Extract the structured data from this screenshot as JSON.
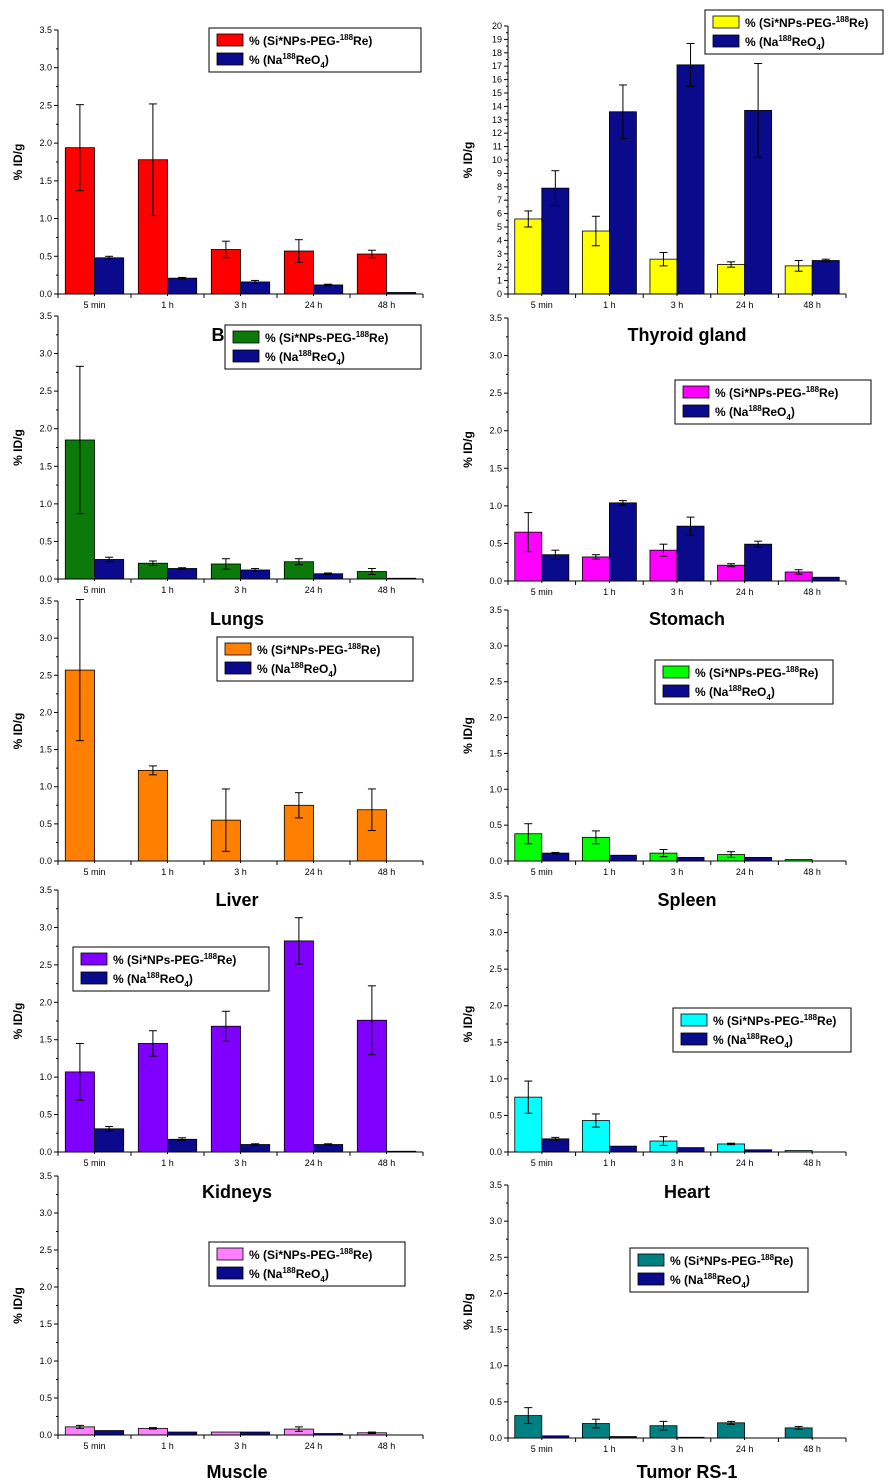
{
  "colors": {
    "series2": "#0a0a8c",
    "axis": "#000000"
  },
  "chart_data": [
    {
      "type": "bar",
      "title": "Blood",
      "ylabel": "% ID/g",
      "categories": [
        "5 min",
        "1 h",
        "3 h",
        "24 h",
        "48 h"
      ],
      "ylim": [
        0,
        3.5
      ],
      "ticks": [
        "0.0",
        "0.5",
        "1.0",
        "1.5",
        "2.0",
        "2.5",
        "3.0",
        "3.5"
      ],
      "legend_position": "top-right",
      "series": [
        {
          "legend_prefix": "% (Si*NPs-PEG-",
          "legend_sup": "188",
          "legend_suffix": "Re)",
          "color": "#ff0000",
          "values": [
            1.94,
            1.78,
            0.59,
            0.57,
            0.53
          ],
          "errors": [
            0.57,
            0.74,
            0.11,
            0.15,
            0.05
          ]
        },
        {
          "legend_prefix": "% (Na",
          "legend_sup": "188",
          "legend_suffix": "ReO",
          "legend_sub": "4",
          "legend_end": ")",
          "color": "#0a0a8c",
          "values": [
            0.48,
            0.21,
            0.16,
            0.12,
            0.02
          ],
          "errors": [
            0.02,
            0.01,
            0.02,
            0.01,
            0.0
          ]
        }
      ]
    },
    {
      "type": "bar",
      "title": "Thyroid gland",
      "ylabel": "% ID/g",
      "categories": [
        "5 min",
        "1 h",
        "3 h",
        "24 h",
        "48 h"
      ],
      "ylim": [
        0,
        20
      ],
      "ticks": [
        "0",
        "1",
        "2",
        "3",
        "4",
        "5",
        "6",
        "7",
        "8",
        "9",
        "10",
        "11",
        "12",
        "13",
        "14",
        "15",
        "16",
        "17",
        "18",
        "19",
        "20"
      ],
      "legend_position": "top-right",
      "series": [
        {
          "legend_prefix": "% (Si*NPs-PEG-",
          "legend_sup": "188",
          "legend_suffix": "Re)",
          "color": "#ffff00",
          "values": [
            5.6,
            4.7,
            2.6,
            2.2,
            2.1
          ],
          "errors": [
            0.6,
            1.1,
            0.5,
            0.2,
            0.4
          ]
        },
        {
          "legend_prefix": "% (Na",
          "legend_sup": "188",
          "legend_suffix": "ReO",
          "legend_sub": "4",
          "legend_end": ")",
          "color": "#0a0a8c",
          "values": [
            7.9,
            13.6,
            17.1,
            13.7,
            2.5
          ],
          "errors": [
            1.3,
            2.0,
            1.6,
            3.5,
            0.1
          ]
        }
      ]
    },
    {
      "type": "bar",
      "title": "Lungs",
      "ylabel": "% ID/g",
      "categories": [
        "5 min",
        "1 h",
        "3 h",
        "24 h",
        "48 h"
      ],
      "ylim": [
        0,
        3.5
      ],
      "ticks": [
        "0.0",
        "0.5",
        "1.0",
        "1.5",
        "2.0",
        "2.5",
        "3.0",
        "3.5"
      ],
      "legend_position": "top-right",
      "series": [
        {
          "legend_prefix": "% (Si*NPs-PEG-",
          "legend_sup": "188",
          "legend_suffix": "Re)",
          "color": "#0b7a0b",
          "values": [
            1.85,
            0.21,
            0.2,
            0.23,
            0.1
          ],
          "errors": [
            0.98,
            0.03,
            0.07,
            0.04,
            0.04
          ]
        },
        {
          "legend_prefix": "% (Na",
          "legend_sup": "188",
          "legend_suffix": "ReO",
          "legend_sub": "4",
          "legend_end": ")",
          "color": "#0a0a8c",
          "values": [
            0.26,
            0.14,
            0.12,
            0.07,
            0.01
          ],
          "errors": [
            0.03,
            0.01,
            0.02,
            0.01,
            0.0
          ]
        }
      ]
    },
    {
      "type": "bar",
      "title": "Stomach",
      "ylabel": "% ID/g",
      "categories": [
        "5 min",
        "1 h",
        "3 h",
        "24 h",
        "48 h"
      ],
      "ylim": [
        0,
        3.5
      ],
      "ticks": [
        "0.0",
        "0.5",
        "1.0",
        "1.5",
        "2.0",
        "2.5",
        "3.0",
        "3.5"
      ],
      "legend_position": "top-right",
      "series": [
        {
          "legend_prefix": "% (Si*NPs-PEG-",
          "legend_sup": "188",
          "legend_suffix": "Re)",
          "color": "#ff00ff",
          "values": [
            0.65,
            0.32,
            0.41,
            0.21,
            0.12
          ],
          "errors": [
            0.26,
            0.03,
            0.08,
            0.02,
            0.03
          ]
        },
        {
          "legend_prefix": "% (Na",
          "legend_sup": "188",
          "legend_suffix": "ReO",
          "legend_sub": "4",
          "legend_end": ")",
          "color": "#0a0a8c",
          "values": [
            0.35,
            1.04,
            0.73,
            0.49,
            0.05
          ],
          "errors": [
            0.06,
            0.03,
            0.12,
            0.04,
            0.0
          ]
        }
      ]
    },
    {
      "type": "bar",
      "title": "Liver",
      "ylabel": "% ID/g",
      "categories": [
        "5 min",
        "1 h",
        "3 h",
        "24 h",
        "48 h"
      ],
      "ylim": [
        0,
        3.5
      ],
      "ticks": [
        "0.0",
        "0.5",
        "1.0",
        "1.5",
        "2.0",
        "2.5",
        "3.0",
        "3.5"
      ],
      "legend_position": "top-right",
      "series": [
        {
          "legend_prefix": "% (Si*NPs-PEG-",
          "legend_sup": "188",
          "legend_suffix": "Re)",
          "color": "#ff8000",
          "values": [
            2.57,
            1.22,
            0.55,
            0.75,
            0.69
          ],
          "errors": [
            0.95,
            0.06,
            0.42,
            0.17,
            0.28
          ]
        },
        {
          "legend_prefix": "% (Na",
          "legend_sup": "188",
          "legend_suffix": "ReO",
          "legend_sub": "4",
          "legend_end": ")",
          "color": "#0a0a8c",
          "values": [
            0,
            0,
            0,
            0,
            0
          ],
          "errors": [
            0,
            0,
            0,
            0,
            0
          ]
        }
      ]
    },
    {
      "type": "bar",
      "title": "Spleen",
      "ylabel": "% ID/g",
      "categories": [
        "5 min",
        "1 h",
        "3 h",
        "24 h",
        "48 h"
      ],
      "ylim": [
        0,
        3.5
      ],
      "ticks": [
        "0.0",
        "0.5",
        "1.0",
        "1.5",
        "2.0",
        "2.5",
        "3.0",
        "3.5"
      ],
      "legend_position": "center-right",
      "series": [
        {
          "legend_prefix": "% (Si*NPs-PEG-",
          "legend_sup": "188",
          "legend_suffix": "Re)",
          "color": "#00ff00",
          "values": [
            0.38,
            0.33,
            0.11,
            0.09,
            0.02
          ],
          "errors": [
            0.14,
            0.09,
            0.05,
            0.04,
            0.0
          ]
        },
        {
          "legend_prefix": "% (Na",
          "legend_sup": "188",
          "legend_suffix": "ReO",
          "legend_sub": "4",
          "legend_end": ")",
          "color": "#0a0a8c",
          "values": [
            0.11,
            0.08,
            0.05,
            0.05,
            0.0
          ],
          "errors": [
            0.01,
            0.0,
            0.0,
            0.0,
            0.0
          ]
        }
      ]
    },
    {
      "type": "bar",
      "title": "Kidneys",
      "ylabel": "% ID/g",
      "categories": [
        "5 min",
        "1 h",
        "3 h",
        "24 h",
        "48 h"
      ],
      "ylim": [
        0,
        3.5
      ],
      "ticks": [
        "0.0",
        "0.5",
        "1.0",
        "1.5",
        "2.0",
        "2.5",
        "3.0",
        "3.5"
      ],
      "legend_position": "top-left",
      "series": [
        {
          "legend_prefix": "% (Si*NPs-PEG-",
          "legend_sup": "188",
          "legend_suffix": "Re)",
          "color": "#8000ff",
          "values": [
            1.07,
            1.45,
            1.68,
            2.82,
            1.76
          ],
          "errors": [
            0.38,
            0.17,
            0.2,
            0.31,
            0.46
          ]
        },
        {
          "legend_prefix": "% (Na",
          "legend_sup": "188",
          "legend_suffix": "ReO",
          "legend_sub": "4",
          "legend_end": ")",
          "color": "#0a0a8c",
          "values": [
            0.31,
            0.17,
            0.1,
            0.1,
            0.01
          ],
          "errors": [
            0.03,
            0.02,
            0.01,
            0.01,
            0.0
          ]
        }
      ]
    },
    {
      "type": "bar",
      "title": "Heart",
      "ylabel": "% ID/g",
      "categories": [
        "5 min",
        "1 h",
        "3 h",
        "24 h",
        "48 h"
      ],
      "ylim": [
        0,
        3.5
      ],
      "ticks": [
        "0.0",
        "0.5",
        "1.0",
        "1.5",
        "2.0",
        "2.5",
        "3.0",
        "3.5"
      ],
      "legend_position": "center-right",
      "series": [
        {
          "legend_prefix": "% (Si*NPs-PEG-",
          "legend_sup": "188",
          "legend_suffix": "Re)",
          "color": "#00ffff",
          "values": [
            0.75,
            0.43,
            0.15,
            0.11,
            0.02
          ],
          "errors": [
            0.22,
            0.09,
            0.06,
            0.01,
            0.0
          ]
        },
        {
          "legend_prefix": "% (Na",
          "legend_sup": "188",
          "legend_suffix": "ReO",
          "legend_sub": "4",
          "legend_end": ")",
          "color": "#0a0a8c",
          "values": [
            0.18,
            0.08,
            0.06,
            0.03,
            0.0
          ],
          "errors": [
            0.02,
            0.0,
            0.0,
            0.0,
            0.0
          ]
        }
      ]
    },
    {
      "type": "bar",
      "title": "Muscle",
      "ylabel": "% ID/g",
      "categories": [
        "5 min",
        "1 h",
        "3 h",
        "24 h",
        "48 h"
      ],
      "ylim": [
        0,
        3.5
      ],
      "ticks": [
        "0.0",
        "0.5",
        "1.0",
        "1.5",
        "2.0",
        "2.5",
        "3.0",
        "3.5"
      ],
      "legend_position": "center-right",
      "series": [
        {
          "legend_prefix": "% (Si*NPs-PEG-",
          "legend_sup": "188",
          "legend_suffix": "Re)",
          "color": "#ff80ff",
          "values": [
            0.11,
            0.09,
            0.04,
            0.08,
            0.03
          ],
          "errors": [
            0.02,
            0.01,
            0.0,
            0.03,
            0.01
          ]
        },
        {
          "legend_prefix": "% (Na",
          "legend_sup": "188",
          "legend_suffix": "ReO",
          "legend_sub": "4",
          "legend_end": ")",
          "color": "#0a0a8c",
          "values": [
            0.06,
            0.04,
            0.04,
            0.02,
            0.0
          ],
          "errors": [
            0.0,
            0.0,
            0.0,
            0.0,
            0.0
          ]
        }
      ]
    },
    {
      "type": "bar",
      "title": "Tumor RS-1",
      "ylabel": "% ID/g",
      "categories": [
        "5 min",
        "1 h",
        "3 h",
        "24 h",
        "48 h"
      ],
      "ylim": [
        0,
        3.5
      ],
      "ticks": [
        "0.0",
        "0.5",
        "1.0",
        "1.5",
        "2.0",
        "2.5",
        "3.0",
        "3.5"
      ],
      "legend_position": "center-right",
      "series": [
        {
          "legend_prefix": "% (Si*NPs-PEG-",
          "legend_sup": "188",
          "legend_suffix": "Re)",
          "color": "#008080",
          "values": [
            0.31,
            0.2,
            0.17,
            0.21,
            0.14
          ],
          "errors": [
            0.11,
            0.06,
            0.06,
            0.02,
            0.02
          ]
        },
        {
          "legend_prefix": "% (Na",
          "legend_sup": "188",
          "legend_suffix": "ReO",
          "legend_sub": "4",
          "legend_end": ")",
          "color": "#0a0a8c",
          "values": [
            0.03,
            0.02,
            0.01,
            0.0,
            0.0
          ],
          "errors": [
            0.0,
            0.0,
            0.0,
            0.0,
            0.0
          ]
        }
      ]
    }
  ]
}
